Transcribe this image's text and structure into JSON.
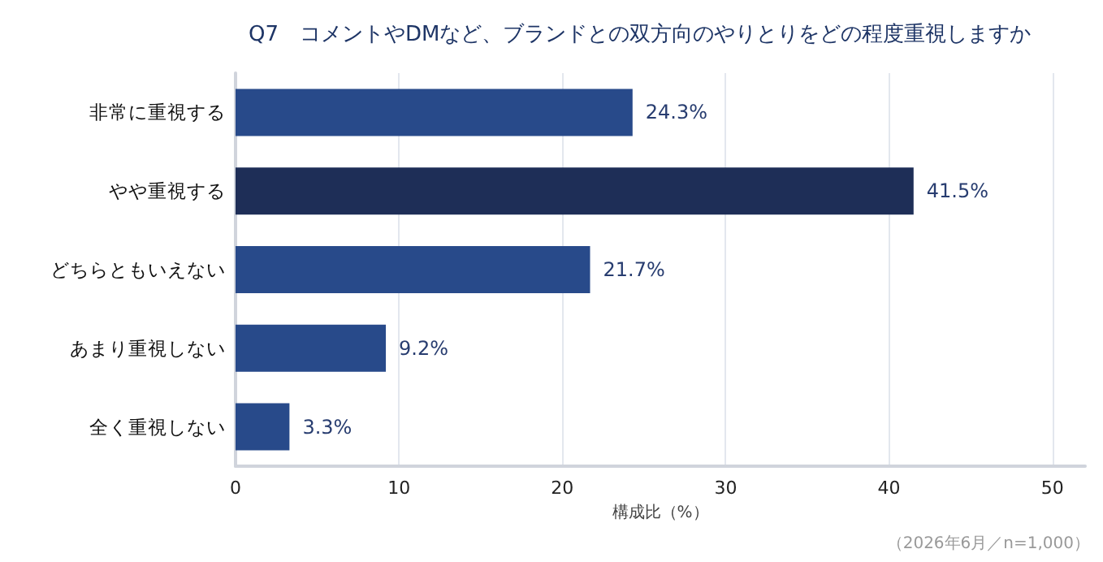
{
  "chart_data": {
    "type": "bar",
    "orientation": "horizontal",
    "title": "Q7　コメントやDMなど、ブランドとの双方向のやりとりをどの程度重視しますか",
    "categories": [
      "非常に重視する",
      "やや重視する",
      "どちらともいえない",
      "あまり重視しない",
      "全く重視しない"
    ],
    "values": [
      24.3,
      41.5,
      21.7,
      9.2,
      3.3
    ],
    "colors": [
      "#284a8a",
      "#1e2e57",
      "#284a8a",
      "#284a8a",
      "#284a8a"
    ],
    "value_labels": [
      "24.3%",
      "41.5%",
      "21.7%",
      "9.2%",
      "3.3%"
    ],
    "xlabel": "構成比（%）",
    "xlim": [
      0,
      52
    ],
    "xticks": [
      0,
      10,
      20,
      30,
      40,
      50
    ],
    "grid": "x",
    "annotations": [
      "（2026年6月／n=1,000）"
    ]
  }
}
